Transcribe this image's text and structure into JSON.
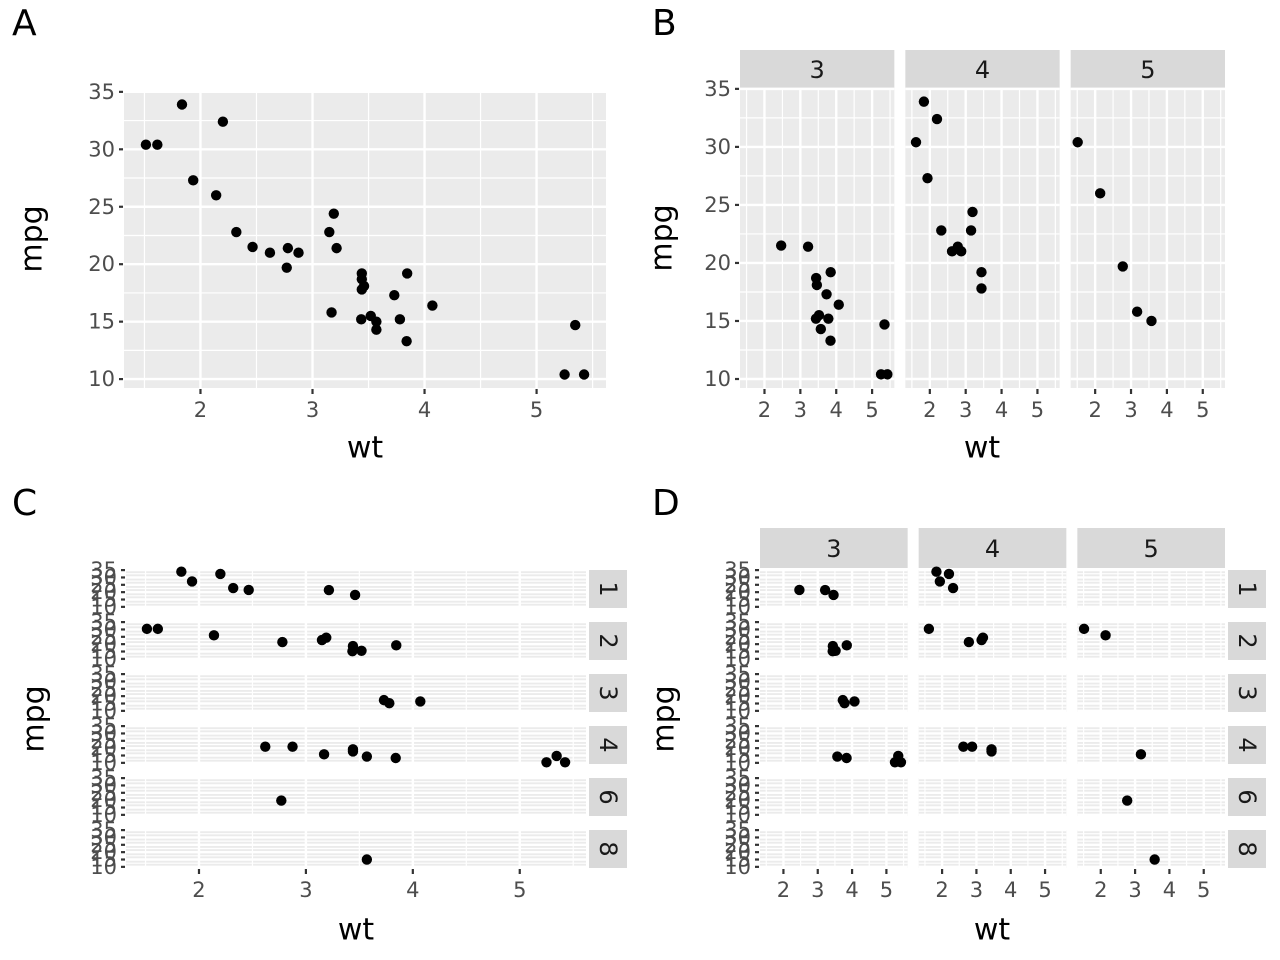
{
  "figure": {
    "background": "#FFFFFF",
    "panels": [
      {
        "id": "A",
        "label": "A",
        "facet_cols": null,
        "facet_rows": null
      },
      {
        "id": "B",
        "label": "B",
        "facet_cols": [
          "3",
          "4",
          "5"
        ],
        "facet_rows": null
      },
      {
        "id": "C",
        "label": "C",
        "facet_cols": null,
        "facet_rows": [
          "1",
          "2",
          "3",
          "4",
          "6",
          "8"
        ]
      },
      {
        "id": "D",
        "label": "D",
        "facet_cols": [
          "3",
          "4",
          "5"
        ],
        "facet_rows": [
          "1",
          "2",
          "3",
          "4",
          "6",
          "8"
        ]
      }
    ]
  },
  "chart_data": {
    "type": "scatter",
    "xlabel": "wt",
    "ylabel": "mpg",
    "x_ticks": [
      2,
      3,
      4,
      5
    ],
    "x_minor_ticks": [
      1.5,
      2.5,
      3.5,
      4.5,
      5.5
    ],
    "y_ticks": [
      35,
      30,
      25,
      20,
      15,
      10
    ],
    "y_minor_ticks": [
      32.5,
      27.5,
      22.5,
      17.5,
      12.5
    ],
    "x_domain": [
      1.3174,
      5.6196
    ],
    "y_domain": [
      9.225,
      35.075
    ],
    "facet_col_values": [
      "3",
      "4",
      "5"
    ],
    "facet_row_values": [
      "1",
      "2",
      "3",
      "4",
      "6",
      "8"
    ],
    "points": [
      {
        "wt": 2.62,
        "mpg": 21.0,
        "gear": 4,
        "carb": 4
      },
      {
        "wt": 2.875,
        "mpg": 21.0,
        "gear": 4,
        "carb": 4
      },
      {
        "wt": 2.32,
        "mpg": 22.8,
        "gear": 4,
        "carb": 1
      },
      {
        "wt": 3.215,
        "mpg": 21.4,
        "gear": 3,
        "carb": 1
      },
      {
        "wt": 3.44,
        "mpg": 18.7,
        "gear": 3,
        "carb": 2
      },
      {
        "wt": 3.46,
        "mpg": 18.1,
        "gear": 3,
        "carb": 1
      },
      {
        "wt": 3.57,
        "mpg": 14.3,
        "gear": 3,
        "carb": 4
      },
      {
        "wt": 3.19,
        "mpg": 24.4,
        "gear": 4,
        "carb": 2
      },
      {
        "wt": 3.15,
        "mpg": 22.8,
        "gear": 4,
        "carb": 2
      },
      {
        "wt": 3.44,
        "mpg": 19.2,
        "gear": 4,
        "carb": 4
      },
      {
        "wt": 3.44,
        "mpg": 17.8,
        "gear": 4,
        "carb": 4
      },
      {
        "wt": 4.07,
        "mpg": 16.4,
        "gear": 3,
        "carb": 3
      },
      {
        "wt": 3.73,
        "mpg": 17.3,
        "gear": 3,
        "carb": 3
      },
      {
        "wt": 3.78,
        "mpg": 15.2,
        "gear": 3,
        "carb": 3
      },
      {
        "wt": 5.25,
        "mpg": 10.4,
        "gear": 3,
        "carb": 4
      },
      {
        "wt": 5.424,
        "mpg": 10.4,
        "gear": 3,
        "carb": 4
      },
      {
        "wt": 5.345,
        "mpg": 14.7,
        "gear": 3,
        "carb": 4
      },
      {
        "wt": 2.2,
        "mpg": 32.4,
        "gear": 4,
        "carb": 1
      },
      {
        "wt": 1.615,
        "mpg": 30.4,
        "gear": 4,
        "carb": 2
      },
      {
        "wt": 1.835,
        "mpg": 33.9,
        "gear": 4,
        "carb": 1
      },
      {
        "wt": 2.465,
        "mpg": 21.5,
        "gear": 3,
        "carb": 1
      },
      {
        "wt": 3.52,
        "mpg": 15.5,
        "gear": 3,
        "carb": 2
      },
      {
        "wt": 3.435,
        "mpg": 15.2,
        "gear": 3,
        "carb": 2
      },
      {
        "wt": 3.84,
        "mpg": 13.3,
        "gear": 3,
        "carb": 4
      },
      {
        "wt": 3.845,
        "mpg": 19.2,
        "gear": 3,
        "carb": 2
      },
      {
        "wt": 1.935,
        "mpg": 27.3,
        "gear": 4,
        "carb": 1
      },
      {
        "wt": 2.14,
        "mpg": 26.0,
        "gear": 5,
        "carb": 2
      },
      {
        "wt": 1.513,
        "mpg": 30.4,
        "gear": 5,
        "carb": 2
      },
      {
        "wt": 3.17,
        "mpg": 15.8,
        "gear": 5,
        "carb": 4
      },
      {
        "wt": 2.77,
        "mpg": 19.7,
        "gear": 5,
        "carb": 6
      },
      {
        "wt": 3.57,
        "mpg": 15.0,
        "gear": 5,
        "carb": 8
      },
      {
        "wt": 2.78,
        "mpg": 21.4,
        "gear": 4,
        "carb": 2
      }
    ]
  },
  "colors": {
    "page_background": "#FFFFFF",
    "panel_background": "#EBEBEB",
    "grid": "#FFFFFF",
    "strip_background": "#D9D9D9",
    "strip_text": "#1A1A1A",
    "axis_text": "#4D4D4D",
    "axis_title": "#000000",
    "tick_mark": "#333333",
    "point": "#000000"
  }
}
